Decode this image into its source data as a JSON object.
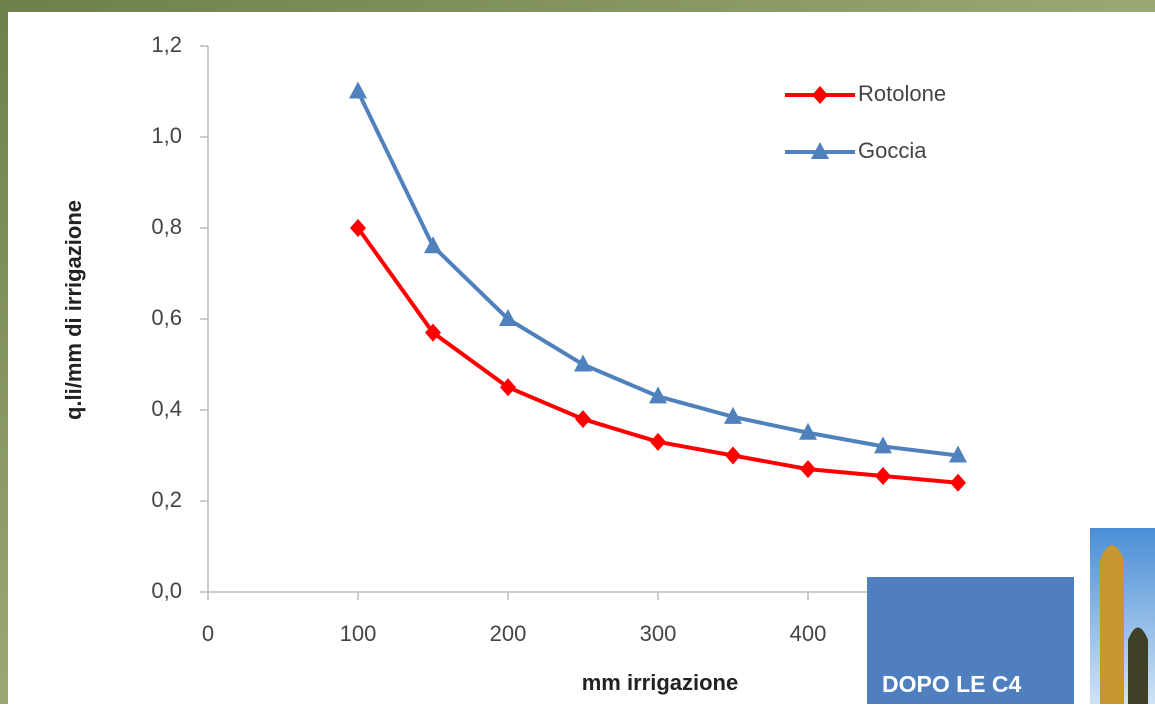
{
  "chart_data": {
    "type": "line",
    "x_label": "mm irrigazione",
    "y_label": "q.li/mm di irrigazione",
    "x": [
      100,
      150,
      200,
      250,
      300,
      350,
      400,
      450,
      500
    ],
    "series": [
      {
        "name": "Rotolone",
        "color": "#ff0000",
        "marker": "diamond",
        "values": [
          0.8,
          0.57,
          0.45,
          0.38,
          0.33,
          0.3,
          0.27,
          0.255,
          0.24
        ]
      },
      {
        "name": "Goccia",
        "color": "#4f81bd",
        "marker": "triangle",
        "values": [
          1.1,
          0.76,
          0.6,
          0.5,
          0.43,
          0.385,
          0.35,
          0.32,
          0.3
        ]
      }
    ],
    "xlim": [
      0,
      500
    ],
    "xticks": [
      0,
      100,
      200,
      300,
      400
    ],
    "ylim": [
      0,
      1.2
    ],
    "yticks": [
      {
        "value": 0,
        "label": "0,0"
      },
      {
        "value": 0.2,
        "label": "0,2"
      },
      {
        "value": 0.4,
        "label": "0,4"
      },
      {
        "value": 0.6,
        "label": "0,6"
      },
      {
        "value": 0.8,
        "label": "0,8"
      },
      {
        "value": 1.0,
        "label": "1,0"
      },
      {
        "value": 1.2,
        "label": "1,2"
      }
    ],
    "legend": "upper right"
  },
  "slide": {
    "box_label": "DOPO LE C4"
  }
}
